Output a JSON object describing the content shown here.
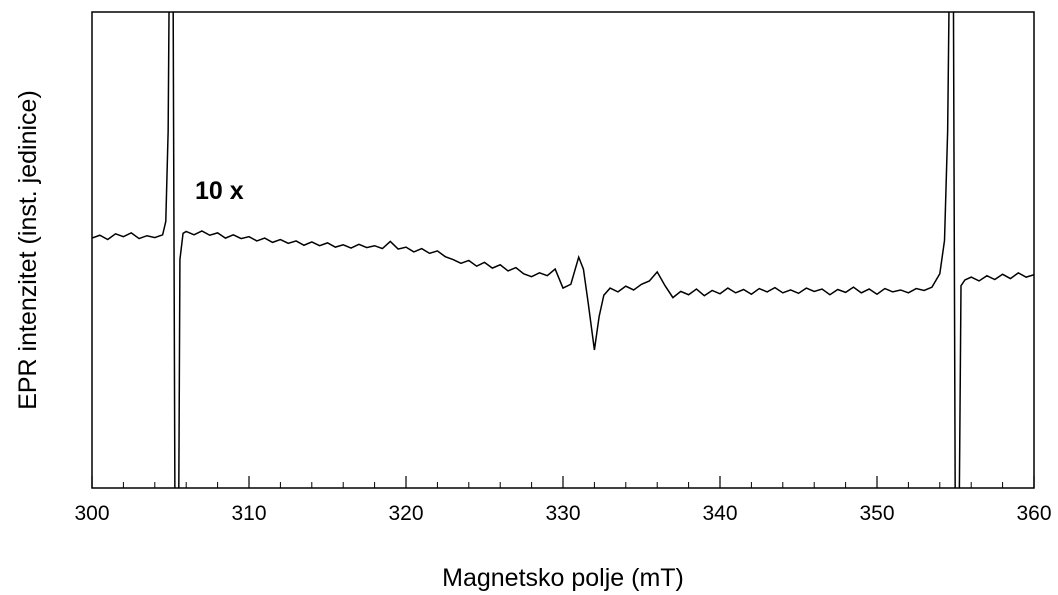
{
  "chart_data": {
    "type": "line",
    "xlabel": "Magnetsko polje (mT)",
    "ylabel": "EPR intenzitet (inst. jedinice)",
    "annotation": "10 x",
    "color": "#000000",
    "xlim": [
      300,
      360
    ],
    "xticks": [
      300,
      310,
      320,
      330,
      340,
      350,
      360
    ],
    "ylim": [
      0,
      100
    ],
    "x": [
      300,
      300.5,
      301,
      301.5,
      302,
      302.5,
      303,
      303.5,
      304,
      304.5,
      304.7,
      304.85,
      304.95,
      305.15,
      305.3,
      305.5,
      305.6,
      305.8,
      306,
      306.5,
      307,
      307.5,
      308,
      308.5,
      309,
      309.5,
      310,
      310.5,
      311,
      311.5,
      312,
      312.5,
      313,
      313.5,
      314,
      314.5,
      315,
      315.5,
      316,
      316.5,
      317,
      317.5,
      318,
      318.5,
      319,
      319.5,
      320,
      320.5,
      321,
      321.5,
      322,
      322.5,
      323,
      323.5,
      324,
      324.5,
      325,
      325.5,
      326,
      326.5,
      327,
      327.5,
      328,
      328.5,
      329,
      329.5,
      330,
      330.5,
      331,
      331.3,
      331.6,
      332,
      332.3,
      332.6,
      333,
      333.5,
      334,
      334.5,
      335,
      335.5,
      336,
      336.5,
      337,
      337.5,
      338,
      338.5,
      339,
      339.5,
      340,
      340.5,
      341,
      341.5,
      342,
      342.5,
      343,
      343.5,
      344,
      344.5,
      345,
      345.5,
      346,
      346.5,
      347,
      347.5,
      348,
      348.5,
      349,
      349.5,
      350,
      350.5,
      351,
      351.5,
      352,
      352.5,
      353,
      353.5,
      354,
      354.3,
      354.5,
      354.65,
      354.85,
      355,
      355.2,
      355.35,
      355.6,
      356,
      356.5,
      357,
      357.5,
      358,
      358.5,
      359,
      359.5,
      360
    ],
    "values": [
      52.5,
      53.1,
      52.2,
      53.4,
      52.8,
      53.6,
      52.4,
      53.0,
      52.6,
      53.2,
      56,
      75,
      120,
      120,
      -20,
      -20,
      48,
      53.5,
      53.9,
      53.2,
      54.0,
      53.1,
      53.6,
      52.5,
      53.2,
      52.4,
      52.8,
      51.9,
      52.5,
      51.6,
      52.2,
      51.4,
      51.9,
      51.0,
      51.7,
      50.9,
      51.5,
      50.6,
      51.1,
      50.4,
      51.2,
      50.5,
      50.9,
      50.3,
      51.8,
      50.2,
      50.6,
      49.6,
      50.3,
      49.3,
      49.8,
      48.6,
      48.0,
      47.2,
      47.8,
      46.6,
      47.4,
      46.2,
      46.9,
      45.6,
      46.3,
      45.0,
      44.4,
      45.2,
      44.6,
      46.0,
      42.0,
      42.8,
      48.5,
      46,
      39.0,
      29.0,
      36,
      40.5,
      42.0,
      41.2,
      42.4,
      41.6,
      42.8,
      43.5,
      45.4,
      42.5,
      40.0,
      41.3,
      40.6,
      41.8,
      40.4,
      41.5,
      40.8,
      42.0,
      41.0,
      41.7,
      40.7,
      41.9,
      41.2,
      42.1,
      41.0,
      41.6,
      40.9,
      42.0,
      41.3,
      41.8,
      40.6,
      41.7,
      41.1,
      42.2,
      41.0,
      41.8,
      40.7,
      41.9,
      41.2,
      41.6,
      41.0,
      41.9,
      41.5,
      42.2,
      45.0,
      52,
      75,
      120,
      120,
      -20,
      -20,
      42.5,
      43.7,
      44.3,
      43.5,
      44.6,
      43.8,
      44.9,
      44.0,
      45.2,
      44.3,
      44.8
    ]
  }
}
